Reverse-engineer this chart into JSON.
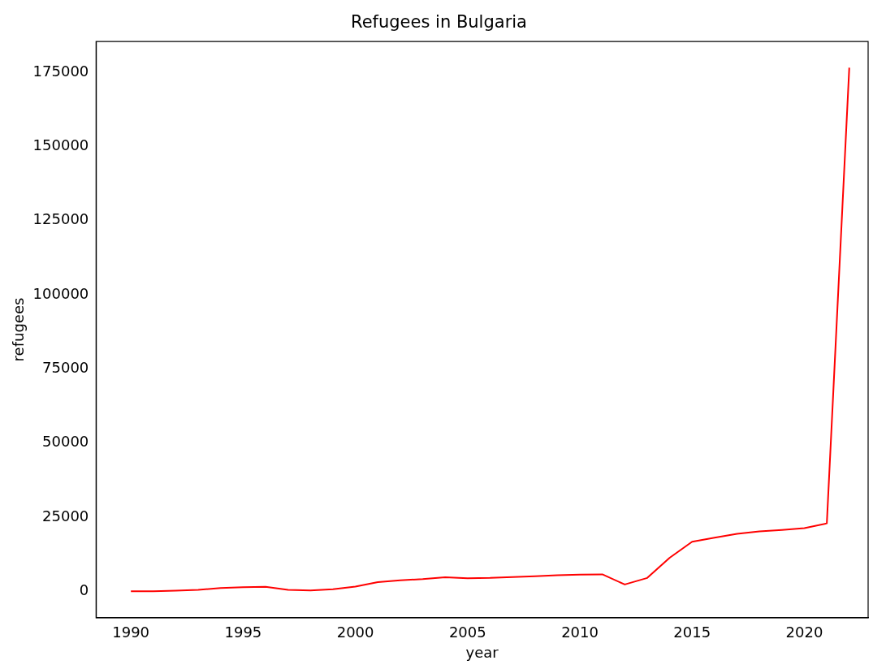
{
  "chart_data": {
    "type": "line",
    "title": "Refugees in Bulgaria",
    "xlabel": "year",
    "ylabel": "refugees",
    "x": [
      1990,
      1991,
      1992,
      1993,
      1994,
      1995,
      1996,
      1997,
      1998,
      1999,
      2000,
      2001,
      2002,
      2003,
      2004,
      2005,
      2006,
      2007,
      2008,
      2009,
      2010,
      2011,
      2012,
      2013,
      2014,
      2015,
      2016,
      2017,
      2018,
      2019,
      2020,
      2021,
      2022
    ],
    "series": [
      {
        "color": "#ff0000",
        "values": [
          0,
          0,
          200,
          500,
          1100,
          1400,
          1500,
          500,
          300,
          700,
          1600,
          3100,
          3700,
          4100,
          4700,
          4400,
          4500,
          4800,
          5100,
          5400,
          5600,
          5700,
          2300,
          4500,
          11300,
          16700,
          18100,
          19400,
          20200,
          20700,
          21300,
          22900,
          176500
        ]
      }
    ],
    "xlim": [
      1988.45,
      2022.84
    ],
    "xticks": [
      1990,
      1995,
      2000,
      2005,
      2010,
      2015,
      2020
    ],
    "ylim": [
      -8900,
      185300
    ],
    "yticks": [
      0,
      25000,
      50000,
      75000,
      100000,
      125000,
      150000,
      175000
    ],
    "grid": false,
    "legend": false,
    "marker": "none",
    "line_style": "solid"
  }
}
